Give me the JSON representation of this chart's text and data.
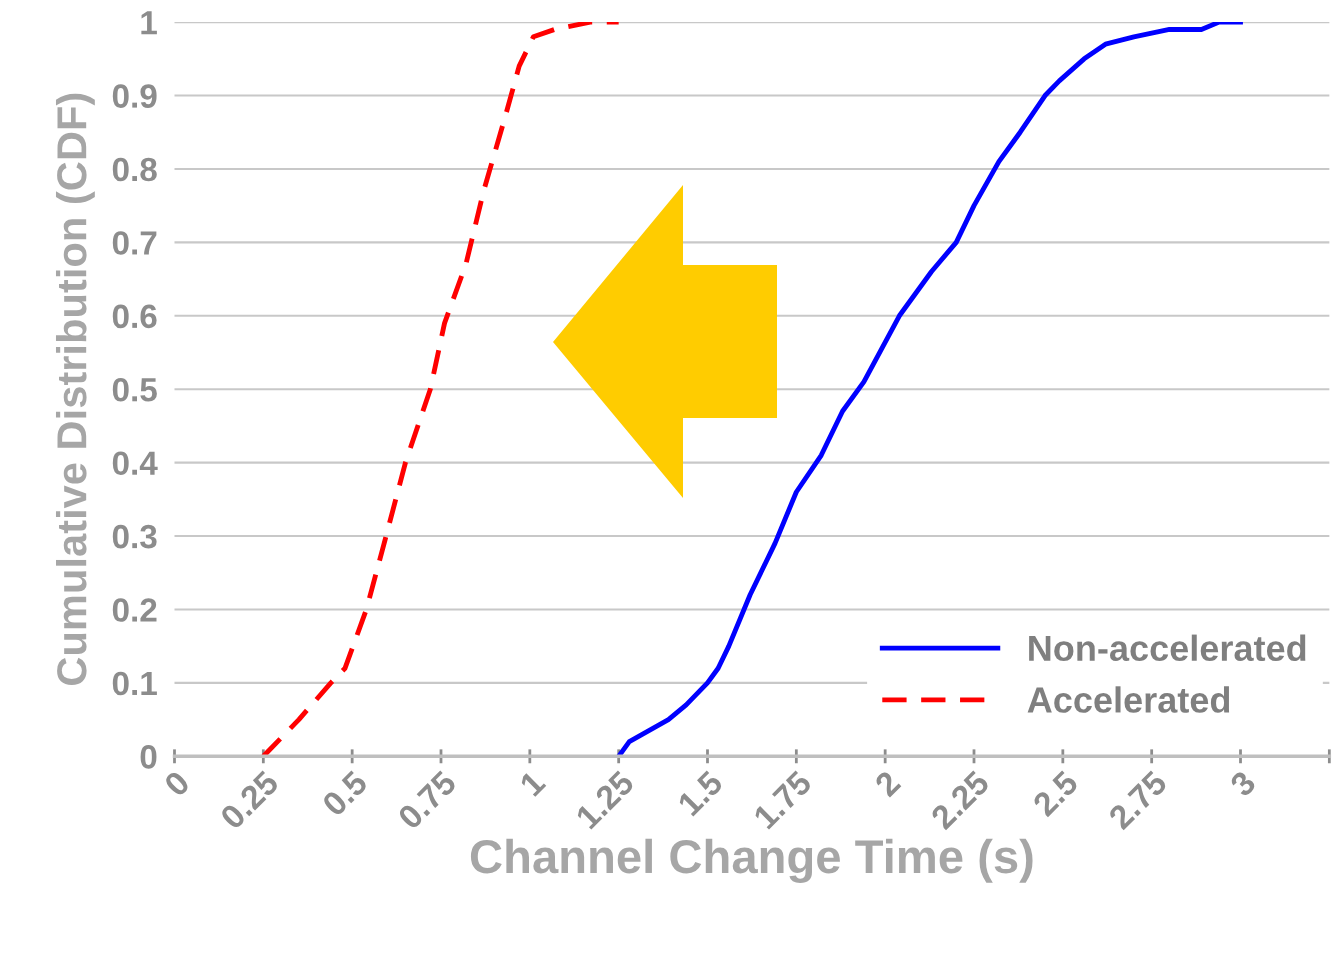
{
  "chart_data": {
    "type": "line",
    "xlabel": "Channel Change Time (s)",
    "ylabel": "Cumulative Distribution (CDF)",
    "xlim": [
      0,
      3.25
    ],
    "xticks": [
      0,
      0.25,
      0.5,
      0.75,
      1,
      1.25,
      1.5,
      1.75,
      2,
      2.25,
      2.5,
      2.75,
      3,
      {
        "value": 3.25,
        "label": null
      }
    ],
    "ylim": [
      0,
      1
    ],
    "yticks": [
      0,
      0.1,
      0.2,
      0.3,
      0.4,
      0.5,
      0.6,
      0.7,
      0.8,
      0.9,
      1
    ],
    "grid": "y",
    "legend": "bottom right",
    "marker": "none",
    "series": [
      {
        "name": "Non-accelerated",
        "color": "#0000ff",
        "line_style": "solid",
        "x": [
          1.25,
          1.28,
          1.39,
          1.44,
          1.5,
          1.53,
          1.56,
          1.62,
          1.69,
          1.75,
          1.82,
          1.88,
          1.94,
          2.04,
          2.13,
          2.2,
          2.25,
          2.32,
          2.38,
          2.45,
          2.49,
          2.56,
          2.62,
          2.7,
          2.8,
          2.89,
          2.94,
          3.0
        ],
        "values": [
          0,
          0.02,
          0.05,
          0.07,
          0.1,
          0.12,
          0.15,
          0.22,
          0.29,
          0.36,
          0.41,
          0.47,
          0.51,
          0.6,
          0.66,
          0.7,
          0.75,
          0.81,
          0.85,
          0.9,
          0.92,
          0.95,
          0.97,
          0.98,
          0.99,
          0.99,
          1.0,
          1.0
        ]
      },
      {
        "name": "Accelerated",
        "color": "#ff0000",
        "line_style": "dashed",
        "x": [
          0.25,
          0.35,
          0.44,
          0.48,
          0.54,
          0.59,
          0.65,
          0.72,
          0.76,
          0.82,
          0.87,
          0.93,
          0.97,
          1.01,
          1.07,
          1.17,
          1.25
        ],
        "values": [
          0,
          0.05,
          0.1,
          0.12,
          0.2,
          0.29,
          0.4,
          0.5,
          0.59,
          0.67,
          0.77,
          0.87,
          0.94,
          0.98,
          0.99,
          1.0,
          1.0
        ]
      }
    ]
  }
}
